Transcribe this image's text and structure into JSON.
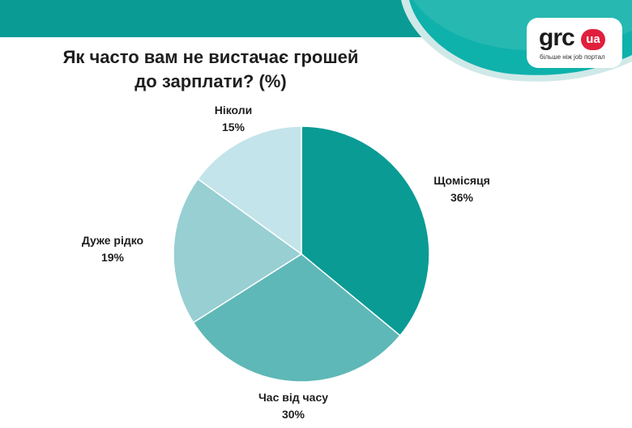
{
  "colors": {
    "band": "#0a9b95",
    "band_light": "#53c1bc",
    "logo_red": "#e01f3d"
  },
  "logo": {
    "word": "grc",
    "badge": "ua",
    "tagline": "більше ніж job портал"
  },
  "chart_data": {
    "type": "pie",
    "title": "Як часто вам не вистачає грошей до зарплати? (%)",
    "title_lines": [
      "Як часто вам не вистачає грошей",
      "до зарплати? (%)"
    ],
    "slices": [
      {
        "label": "Щомісяця",
        "value": 36,
        "value_text": "36%",
        "color": "#0a9b95"
      },
      {
        "label": "Час від часу",
        "value": 30,
        "value_text": "30%",
        "color": "#5eb8b7"
      },
      {
        "label": "Дуже рідко",
        "value": 19,
        "value_text": "19%",
        "color": "#97cfd2"
      },
      {
        "label": "Ніколи",
        "value": 15,
        "value_text": "15%",
        "color": "#c3e4ea"
      }
    ]
  }
}
